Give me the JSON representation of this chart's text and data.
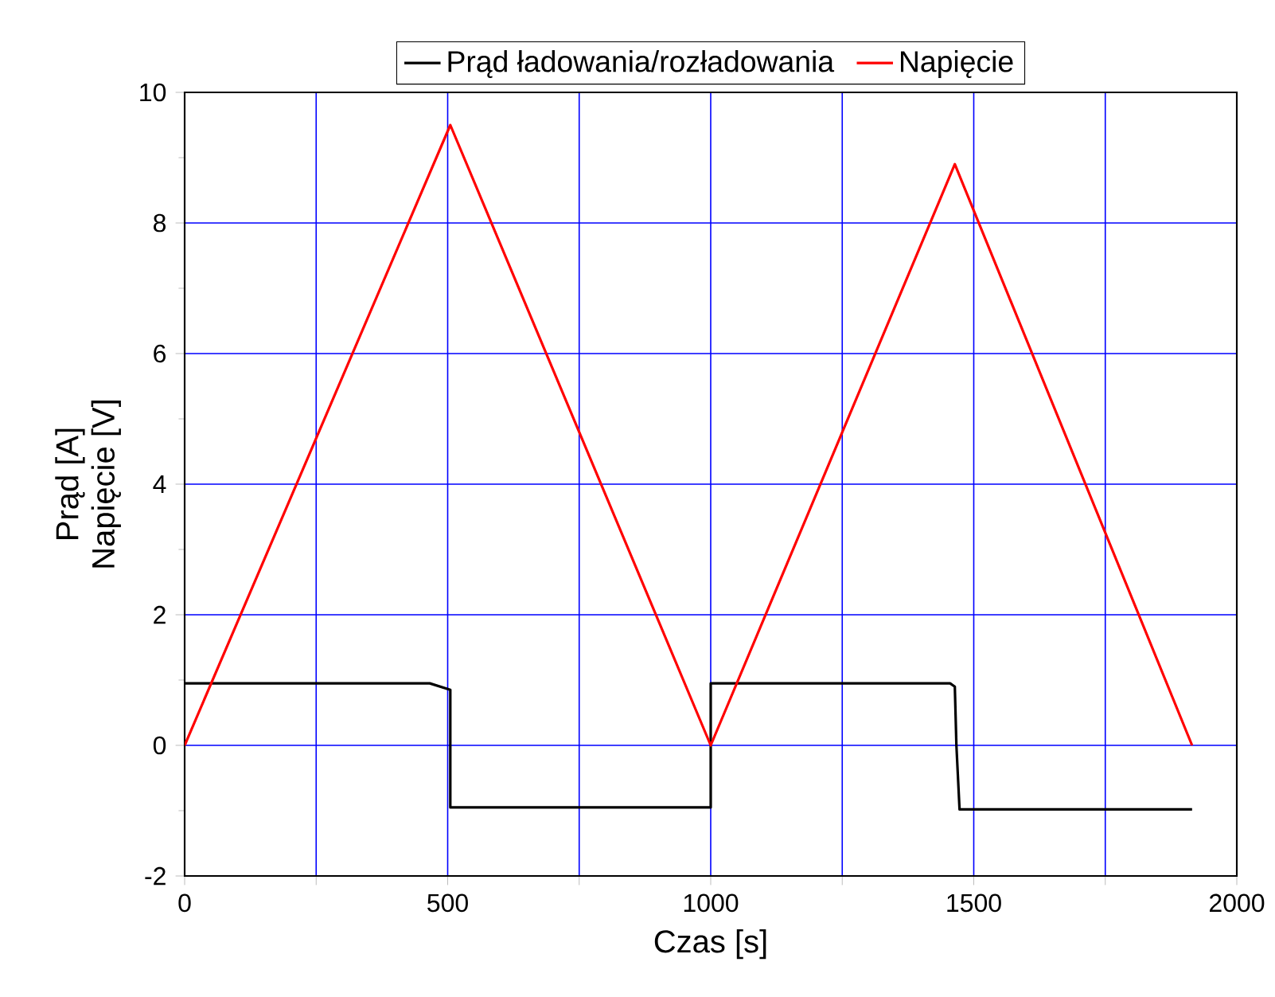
{
  "chart_data": {
    "type": "line",
    "xlabel": "Czas [s]",
    "ylabel": "Prąd [A]\nNapięcie [V]",
    "xlim": [
      0,
      2000
    ],
    "ylim": [
      -2,
      10
    ],
    "xticks": [
      0,
      {
        "value": 250,
        "label": null
      },
      500,
      {
        "value": 750,
        "label": null
      },
      1000,
      {
        "value": 1250,
        "label": null
      },
      1500,
      {
        "value": 1750,
        "label": null
      },
      2000
    ],
    "yticks": [
      -2,
      0,
      2,
      4,
      6,
      8,
      10
    ],
    "grid": true,
    "legend": "top",
    "line_style": "solid",
    "marker": "none",
    "series": [
      {
        "name": "Prąd ładowania/rozładowania",
        "color": "#000000",
        "x": [
          0,
          466,
          505,
          505,
          1000,
          1000,
          1455,
          1464,
          1467,
          1473,
          1915
        ],
        "values": [
          0.95,
          0.95,
          0.85,
          -0.95,
          -0.95,
          0.95,
          0.95,
          0.9,
          0,
          -0.98,
          -0.98
        ]
      },
      {
        "name": "Napięcie",
        "color": "#ff0000",
        "x": [
          0,
          505,
          1000,
          1464,
          1915
        ],
        "values": [
          0,
          9.5,
          0,
          8.9,
          0
        ]
      }
    ]
  }
}
